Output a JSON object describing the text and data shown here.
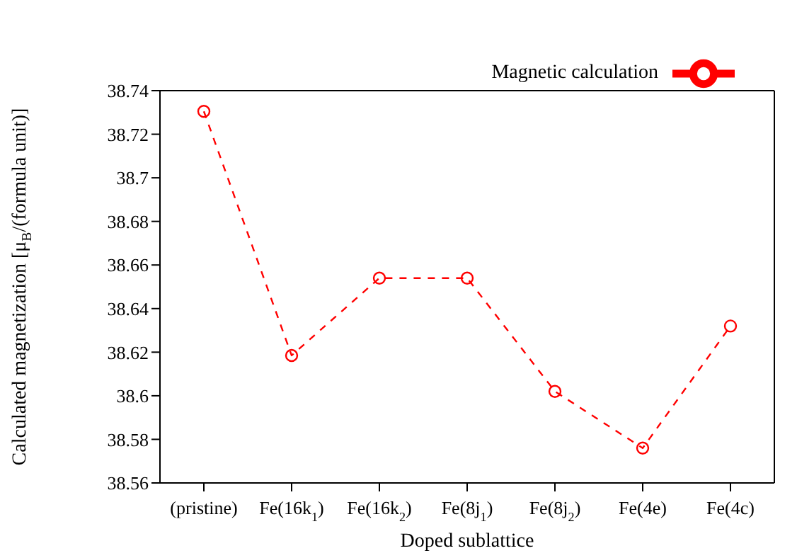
{
  "chart_data": {
    "type": "line",
    "xlabel": "Doped sublattice",
    "ylabel": "Calculated magnetization [μ$_{B}$/(formula unit)]",
    "categories": [
      "(pristine)",
      "Fe(16k$_{1}$)",
      "Fe(16k$_{2}$)",
      "Fe(8j$_{1}$)",
      "Fe(8j$_{2}$)",
      "Fe(4e)",
      "Fe(4c)"
    ],
    "series": [
      {
        "name": "Magnetic calculation",
        "color": "#ff0000",
        "values": [
          38.7305,
          38.6185,
          38.654,
          38.654,
          38.602,
          38.576,
          38.632
        ]
      }
    ],
    "ylim": [
      38.56,
      38.74
    ],
    "yticks": [
      38.56,
      38.58,
      38.6,
      38.62,
      38.64,
      38.66,
      38.68,
      38.7,
      38.72,
      38.74
    ],
    "legend": "top right",
    "marker": "circle",
    "line_style": "dashed",
    "grid": false
  }
}
